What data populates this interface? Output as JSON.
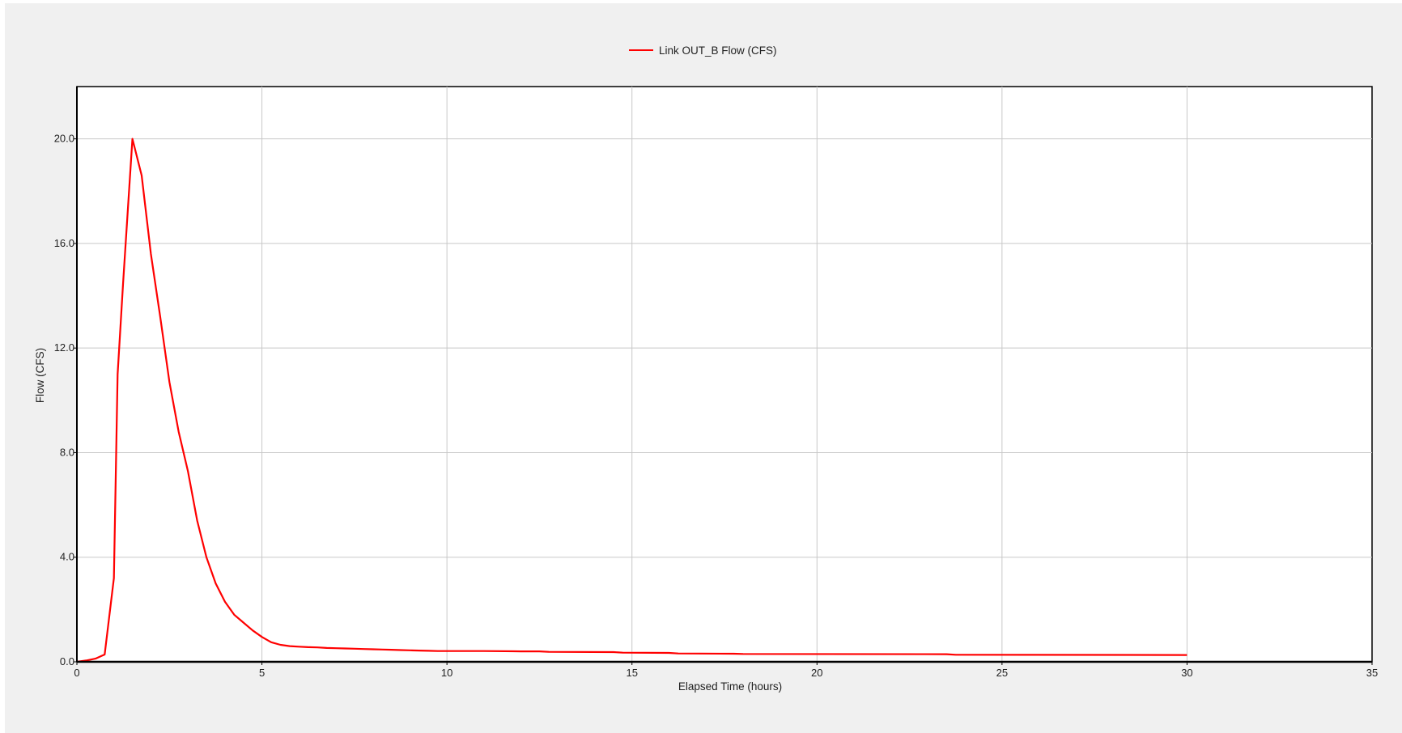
{
  "chart_data": {
    "type": "line",
    "title": "",
    "xlabel": "Elapsed Time (hours)",
    "ylabel": "Flow (CFS)",
    "xlim": [
      0,
      35
    ],
    "ylim": [
      0,
      22
    ],
    "xticks": [
      0,
      5,
      10,
      15,
      20,
      25,
      30,
      35
    ],
    "yticks": [
      0,
      4,
      8,
      12,
      16,
      20
    ],
    "ytick_labels": [
      "0.0",
      "4.0",
      "8.0",
      "12.0",
      "16.0",
      "20.0"
    ],
    "grid": true,
    "legend_position": "top-center",
    "series": [
      {
        "name": "Link OUT_B Flow (CFS)",
        "color": "#ff0000",
        "x": [
          0,
          0.25,
          0.5,
          0.75,
          1.0,
          1.1,
          1.25,
          1.5,
          1.75,
          2.0,
          2.25,
          2.5,
          2.75,
          3.0,
          3.25,
          3.5,
          3.75,
          4.0,
          4.25,
          4.5,
          4.75,
          5.0,
          5.25,
          5.5,
          5.75,
          6.0,
          6.25,
          6.5,
          6.75,
          7.0,
          7.25,
          7.5,
          7.75,
          8.0,
          8.25,
          8.5,
          8.75,
          9.0,
          9.25,
          9.5,
          9.75,
          10.0,
          11.0,
          12.0,
          12.5,
          12.75,
          14.5,
          14.75,
          16.0,
          16.25,
          17.75,
          18.0,
          23.5,
          23.75,
          30.0
        ],
        "values": [
          0.0,
          0.05,
          0.12,
          0.28,
          3.2,
          11.0,
          14.5,
          20.0,
          18.6,
          15.6,
          13.2,
          10.7,
          8.8,
          7.3,
          5.4,
          4.0,
          3.0,
          2.3,
          1.8,
          1.5,
          1.2,
          0.95,
          0.75,
          0.65,
          0.6,
          0.58,
          0.56,
          0.55,
          0.53,
          0.52,
          0.51,
          0.5,
          0.49,
          0.48,
          0.47,
          0.46,
          0.45,
          0.44,
          0.43,
          0.42,
          0.41,
          0.41,
          0.41,
          0.4,
          0.4,
          0.38,
          0.37,
          0.35,
          0.34,
          0.32,
          0.31,
          0.3,
          0.29,
          0.27,
          0.26
        ]
      }
    ]
  }
}
